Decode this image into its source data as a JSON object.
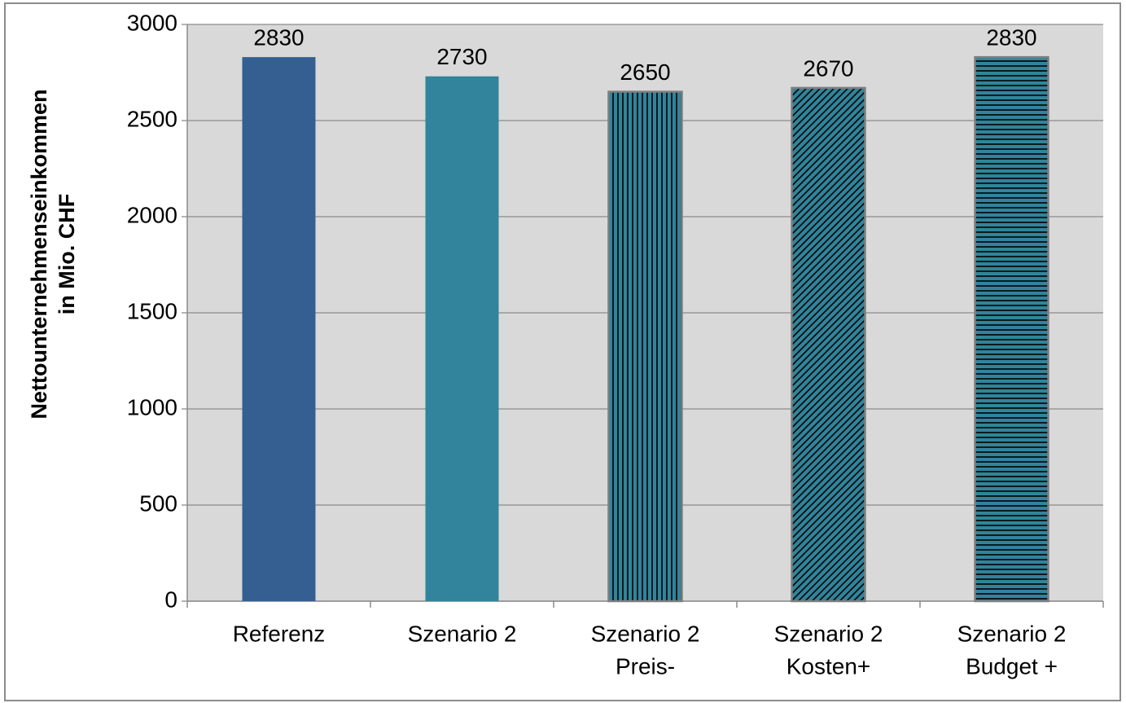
{
  "chart_data": {
    "type": "bar",
    "ylabel": [
      "Nettounternehmenseinkommen",
      "in Mio. CHF"
    ],
    "categories": [
      [
        "Referenz"
      ],
      [
        "Szenario 2"
      ],
      [
        "Szenario 2",
        "Preis-"
      ],
      [
        "Szenario 2",
        "Kosten+"
      ],
      [
        "Szenario 2",
        "Budget +"
      ]
    ],
    "values": [
      2830,
      2730,
      2650,
      2670,
      2830
    ],
    "colors": [
      "#365f91",
      "#31849b",
      "#31849b",
      "#31849b",
      "#31849b"
    ],
    "patterns": [
      null,
      null,
      "vertical",
      "diagonal",
      "horizontal"
    ],
    "ylim": [
      0,
      3000
    ],
    "yticks": [
      0,
      500,
      1000,
      1500,
      2000,
      2500,
      3000
    ],
    "grid": true
  }
}
